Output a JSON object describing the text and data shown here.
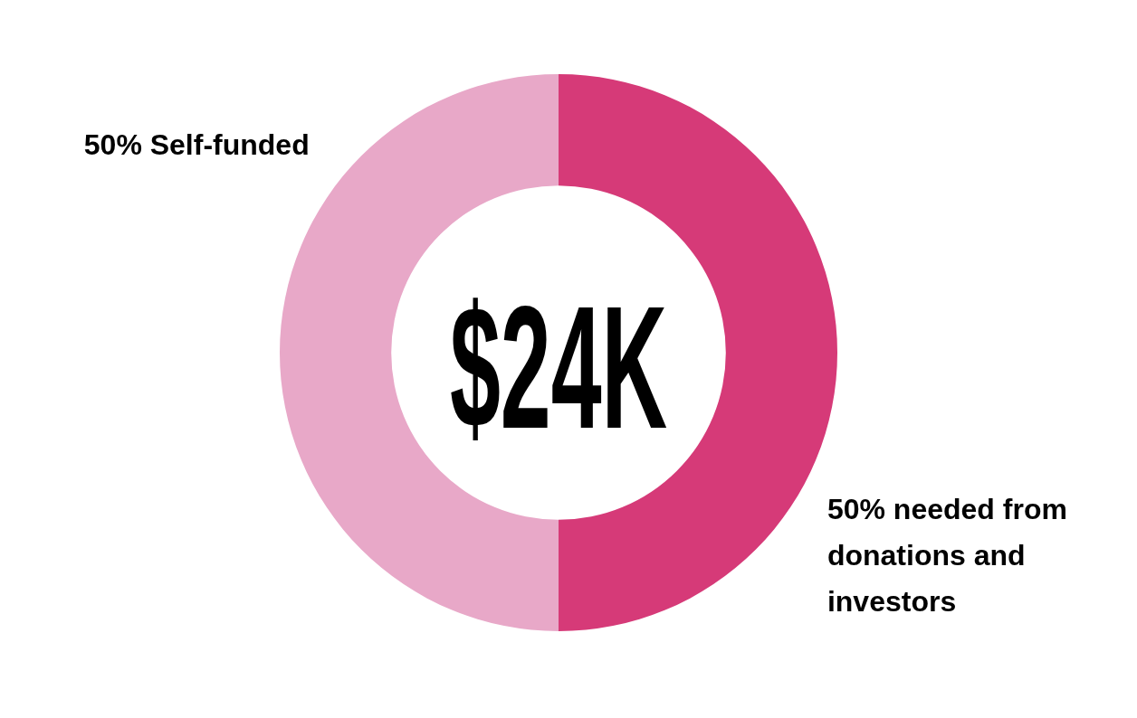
{
  "chart_data": {
    "type": "donut",
    "categories": [
      "Self-funded",
      "needed from donations and investors"
    ],
    "values": [
      50,
      50
    ],
    "value_labels": [
      "50%",
      "50%"
    ],
    "colors": [
      "#e8a8c8",
      "#d63a78"
    ],
    "annotations": [
      "$24K"
    ],
    "legend": false
  }
}
